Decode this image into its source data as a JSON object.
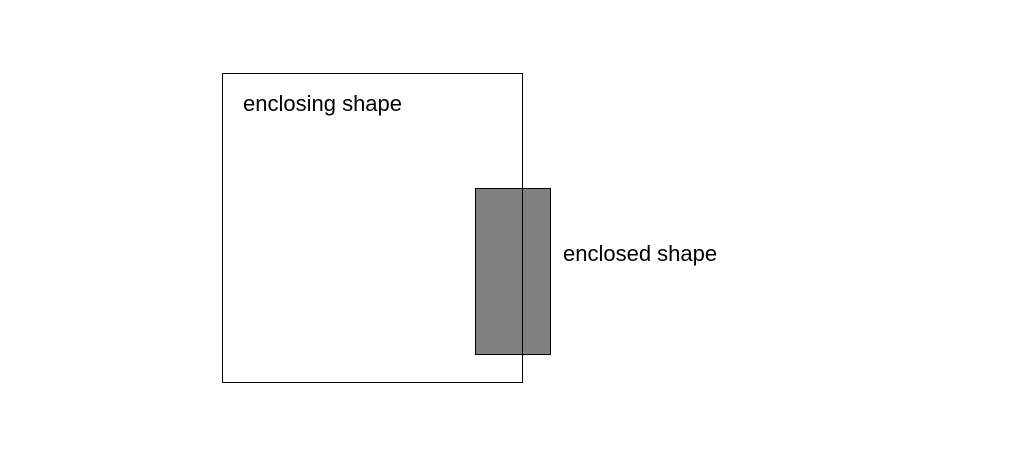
{
  "labels": {
    "enclosing": "enclosing shape",
    "enclosed": "enclosed shape"
  },
  "colors": {
    "background": "#ffffff",
    "stroke": "#000000",
    "enclosed_fill": "#808080"
  }
}
